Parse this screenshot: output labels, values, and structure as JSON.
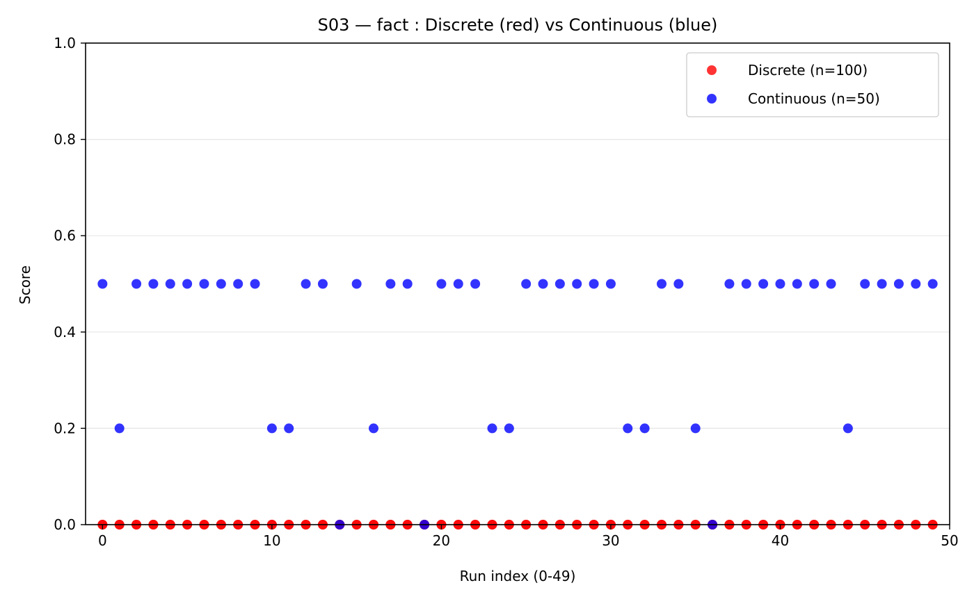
{
  "chart_data": {
    "type": "scatter",
    "title": "S03 — fact : Discrete (red) vs Continuous (blue)",
    "xlabel": "Run index (0-49)",
    "ylabel": "Score",
    "xlim": [
      -1,
      50
    ],
    "ylim": [
      0,
      1
    ],
    "xticks": [
      0,
      10,
      20,
      30,
      40,
      50
    ],
    "yticks": [
      0.0,
      0.2,
      0.4,
      0.6,
      0.8,
      1.0
    ],
    "ytick_labels": [
      "0.0",
      "0.2",
      "0.4",
      "0.6",
      "0.8",
      "1.0"
    ],
    "grid": "horizontal",
    "legend_position": "top-right",
    "series": [
      {
        "name": "Discrete (n=100)",
        "color": "#ff0000",
        "x": [
          0,
          0,
          1,
          1,
          2,
          2,
          3,
          3,
          4,
          4,
          5,
          5,
          6,
          6,
          7,
          7,
          8,
          8,
          9,
          9,
          10,
          10,
          11,
          11,
          12,
          12,
          13,
          13,
          14,
          14,
          15,
          15,
          16,
          16,
          17,
          17,
          18,
          18,
          19,
          19,
          20,
          20,
          21,
          21,
          22,
          22,
          23,
          23,
          24,
          24,
          25,
          25,
          26,
          26,
          27,
          27,
          28,
          28,
          29,
          29,
          30,
          30,
          31,
          31,
          32,
          32,
          33,
          33,
          34,
          34,
          35,
          35,
          36,
          36,
          37,
          37,
          38,
          38,
          39,
          39,
          40,
          40,
          41,
          41,
          42,
          42,
          43,
          43,
          44,
          44,
          45,
          45,
          46,
          46,
          47,
          47,
          48,
          48,
          49,
          49
        ],
        "y": [
          0,
          0,
          0,
          0,
          0,
          0,
          0,
          0,
          0,
          0,
          0,
          0,
          0,
          0,
          0,
          0,
          0,
          0,
          0,
          0,
          0,
          0,
          0,
          0,
          0,
          0,
          0,
          0,
          0,
          0,
          0,
          0,
          0,
          0,
          0,
          0,
          0,
          0,
          0,
          0,
          0,
          0,
          0,
          0,
          0,
          0,
          0,
          0,
          0,
          0,
          0,
          0,
          0,
          0,
          0,
          0,
          0,
          0,
          0,
          0,
          0,
          0,
          0,
          0,
          0,
          0,
          0,
          0,
          0,
          0,
          0,
          0,
          0,
          0,
          0,
          0,
          0,
          0,
          0,
          0,
          0,
          0,
          0,
          0,
          0,
          0,
          0,
          0,
          0,
          0,
          0,
          0,
          0,
          0,
          0,
          0,
          0,
          0,
          0,
          0
        ]
      },
      {
        "name": "Continuous (n=50)",
        "color": "#0000ff",
        "x": [
          0,
          1,
          2,
          3,
          4,
          5,
          6,
          7,
          8,
          9,
          10,
          11,
          12,
          13,
          14,
          15,
          16,
          17,
          18,
          19,
          20,
          21,
          22,
          23,
          24,
          25,
          26,
          27,
          28,
          29,
          30,
          31,
          32,
          33,
          34,
          35,
          36,
          37,
          38,
          39,
          40,
          41,
          42,
          43,
          44,
          45,
          46,
          47,
          48,
          49
        ],
        "y": [
          0.5,
          0.2,
          0.5,
          0.5,
          0.5,
          0.5,
          0.5,
          0.5,
          0.5,
          0.5,
          0.2,
          0.2,
          0.5,
          0.5,
          0.0,
          0.5,
          0.2,
          0.5,
          0.5,
          0.0,
          0.5,
          0.5,
          0.5,
          0.2,
          0.2,
          0.5,
          0.5,
          0.5,
          0.5,
          0.5,
          0.5,
          0.2,
          0.2,
          0.5,
          0.5,
          0.2,
          0.0,
          0.5,
          0.5,
          0.5,
          0.5,
          0.5,
          0.5,
          0.5,
          0.2,
          0.5,
          0.5,
          0.5,
          0.5,
          0.5
        ]
      }
    ]
  }
}
